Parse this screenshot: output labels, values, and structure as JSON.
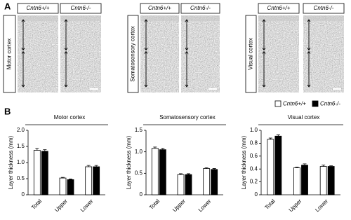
{
  "panel_a": {
    "label": "A",
    "genotypes": [
      "Cntn6+/+",
      "Cntn6-/-"
    ],
    "regions": [
      "Motor cortex",
      "Somatosensory cortex",
      "Visual cortex"
    ]
  },
  "panel_b": {
    "label": "B"
  },
  "chart_data": [
    {
      "type": "bar",
      "title": "Motor cortex",
      "y_label": "Layer thickness (mm)",
      "categories": [
        "Total",
        "Upper",
        "Lower"
      ],
      "series": [
        {
          "name": "Cntn6+/+",
          "color": "#ffffff",
          "values": [
            1.38,
            0.52,
            0.87
          ],
          "errors": [
            0.06,
            0.02,
            0.04
          ]
        },
        {
          "name": "Cntn6-/-",
          "color": "#000000",
          "values": [
            1.35,
            0.47,
            0.87
          ],
          "errors": [
            0.05,
            0.02,
            0.04
          ]
        }
      ],
      "ylim": [
        0,
        2.0
      ],
      "yticks": [
        0,
        0.5,
        {
          "value": 1.0,
          "label": "1.0"
        },
        1.5,
        {
          "value": 2.0,
          "label": "2.0"
        }
      ]
    },
    {
      "type": "bar",
      "title": "Somatosensory cortex",
      "y_label": "Layer thickness (mm)",
      "categories": [
        "Total",
        "Upper",
        "Lower"
      ],
      "series": [
        {
          "name": "Cntn6+/+",
          "color": "#ffffff",
          "values": [
            1.08,
            0.47,
            0.61
          ],
          "errors": [
            0.03,
            0.02,
            0.02
          ]
        },
        {
          "name": "Cntn6-/-",
          "color": "#000000",
          "values": [
            1.05,
            0.47,
            0.59
          ],
          "errors": [
            0.03,
            0.02,
            0.02
          ]
        }
      ],
      "ylim": [
        0,
        1.5
      ],
      "yticks": [
        0,
        0.5,
        {
          "value": 1.0,
          "label": "1.0"
        },
        1.5
      ]
    },
    {
      "type": "bar",
      "title": "Visual cortex",
      "y_label": "Layer thickness (mm)",
      "categories": [
        "Total",
        "Upper",
        "Lower"
      ],
      "series": [
        {
          "name": "Cntn6+/+",
          "color": "#ffffff",
          "values": [
            0.86,
            0.42,
            0.44
          ],
          "errors": [
            0.02,
            0.01,
            0.02
          ]
        },
        {
          "name": "Cntn6-/-",
          "color": "#000000",
          "values": [
            0.91,
            0.46,
            0.44
          ],
          "errors": [
            0.02,
            0.02,
            0.01
          ]
        }
      ],
      "ylim": [
        0,
        1.0
      ],
      "yticks": [
        0,
        0.2,
        0.4,
        0.6,
        0.8,
        {
          "value": 1.0,
          "label": "1.0"
        }
      ]
    }
  ]
}
